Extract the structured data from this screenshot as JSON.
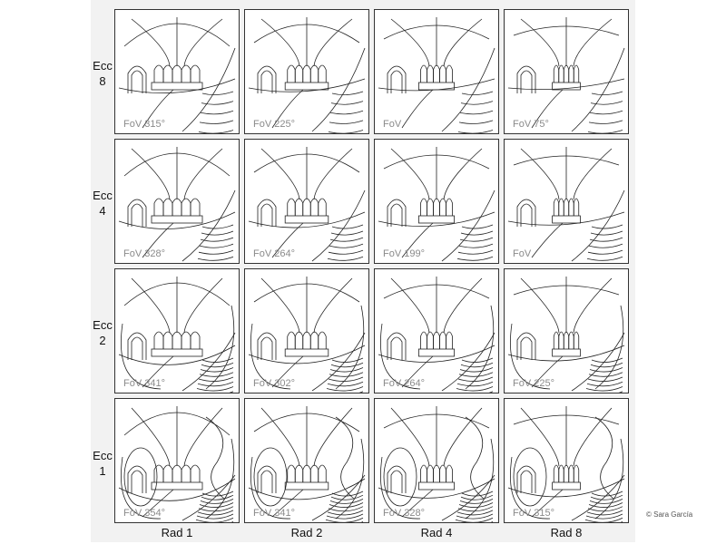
{
  "row_labels": [
    {
      "line1": "Ecc",
      "line2": "8"
    },
    {
      "line1": "Ecc",
      "line2": "4"
    },
    {
      "line1": "Ecc",
      "line2": "2"
    },
    {
      "line1": "Ecc",
      "line2": "1"
    }
  ],
  "column_labels": [
    "Rad 1",
    "Rad 2",
    "Rad 4",
    "Rad 8"
  ],
  "fov_labels": [
    [
      "FoV 315°",
      "FoV 225°",
      "FoV",
      "FoV 75°"
    ],
    [
      "FoV 328°",
      "FoV 264°",
      "FoV 199°",
      "FoV"
    ],
    [
      "FoV 341°",
      "FoV 302°",
      "FoV 264°",
      "FoV 225°"
    ],
    [
      "FoV 354°",
      "FoV 341°",
      "FoV 328°",
      "FoV 315°"
    ]
  ],
  "credit": "© Sara García"
}
